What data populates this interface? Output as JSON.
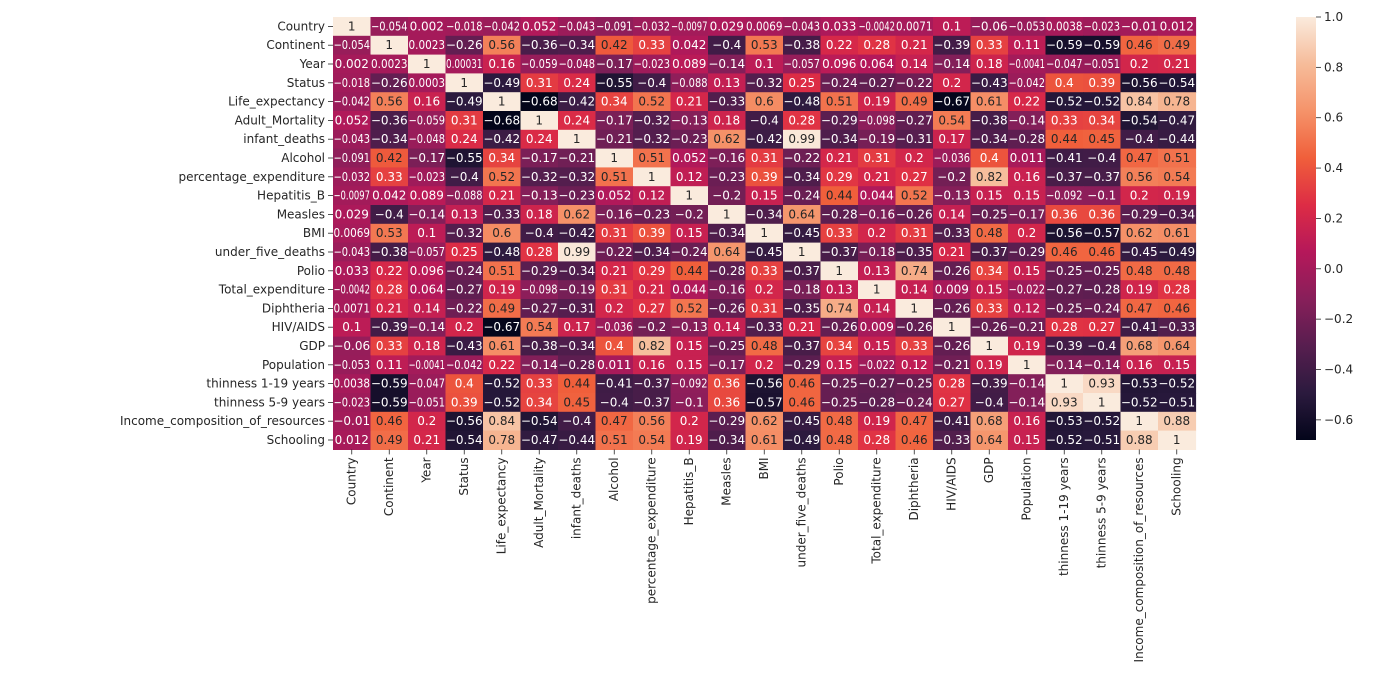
{
  "chart_data": {
    "type": "heatmap",
    "title": "",
    "xlabel": "",
    "ylabel": "",
    "variables": [
      "Country",
      "Continent",
      "Year",
      "Status",
      "Life_expectancy",
      "Adult_Mortality",
      "infant_deaths",
      "Alcohol",
      "percentage_expenditure",
      "Hepatitis_B",
      "Measles ",
      "BMI",
      "under_five_deaths",
      "Polio",
      "Total_expenditure",
      "Diphtheria",
      "HIV/AIDS",
      "GDP",
      "Population",
      "thinness  1-19 years",
      "thinness 5-9 years",
      "Income_composition_of_resources",
      "Schooling"
    ],
    "matrix": [
      [
        1,
        -0.054,
        0.002,
        -0.018,
        -0.042,
        0.052,
        -0.043,
        -0.091,
        -0.032,
        -0.0097,
        0.029,
        0.0069,
        -0.043,
        0.033,
        -0.0042,
        0.0071,
        0.1,
        -0.06,
        -0.053,
        0.0038,
        -0.023,
        -0.01,
        0.012
      ],
      [
        -0.054,
        1,
        0.0023,
        -0.26,
        0.56,
        -0.36,
        -0.34,
        0.42,
        0.33,
        0.042,
        -0.4,
        0.53,
        -0.38,
        0.22,
        0.28,
        0.21,
        -0.39,
        0.33,
        0.11,
        -0.59,
        -0.59,
        0.46,
        0.49
      ],
      [
        0.002,
        0.0023,
        1,
        0.00031,
        0.16,
        -0.059,
        -0.048,
        -0.17,
        -0.023,
        0.089,
        -0.14,
        0.1,
        -0.057,
        0.096,
        0.064,
        0.14,
        -0.14,
        0.18,
        -0.0041,
        -0.047,
        -0.051,
        0.2,
        0.21
      ],
      [
        -0.018,
        -0.26,
        0.0003,
        1,
        -0.49,
        0.31,
        0.24,
        -0.55,
        -0.4,
        -0.088,
        0.13,
        -0.32,
        0.25,
        -0.24,
        -0.27,
        -0.22,
        0.2,
        -0.43,
        -0.042,
        0.4,
        0.39,
        -0.56,
        -0.54
      ],
      [
        -0.042,
        0.56,
        0.16,
        -0.49,
        1,
        -0.68,
        -0.42,
        0.34,
        0.52,
        0.21,
        -0.33,
        0.6,
        -0.48,
        0.51,
        0.19,
        0.49,
        -0.67,
        0.61,
        0.22,
        -0.52,
        -0.52,
        0.84,
        0.78
      ],
      [
        0.052,
        -0.36,
        -0.059,
        0.31,
        -0.68,
        1,
        0.24,
        -0.17,
        -0.32,
        -0.13,
        0.18,
        -0.4,
        0.28,
        -0.29,
        -0.098,
        -0.27,
        0.54,
        -0.38,
        -0.14,
        0.33,
        0.34,
        -0.54,
        -0.47
      ],
      [
        -0.043,
        -0.34,
        -0.048,
        0.24,
        -0.42,
        0.24,
        1,
        -0.21,
        -0.32,
        -0.23,
        0.62,
        -0.42,
        0.99,
        -0.34,
        -0.19,
        -0.31,
        0.17,
        -0.34,
        -0.28,
        0.44,
        0.45,
        -0.4,
        -0.44
      ],
      [
        -0.091,
        0.42,
        -0.17,
        -0.55,
        0.34,
        -0.17,
        -0.21,
        1,
        0.51,
        0.052,
        -0.16,
        0.31,
        -0.22,
        0.21,
        0.31,
        0.2,
        -0.036,
        0.4,
        0.011,
        -0.41,
        -0.4,
        0.47,
        0.51
      ],
      [
        -0.032,
        0.33,
        -0.023,
        -0.4,
        0.52,
        -0.32,
        -0.32,
        0.51,
        1,
        0.12,
        -0.23,
        0.39,
        -0.34,
        0.29,
        0.21,
        0.27,
        -0.2,
        0.82,
        0.16,
        -0.37,
        -0.37,
        0.56,
        0.54
      ],
      [
        -0.0097,
        0.042,
        0.089,
        -0.088,
        0.21,
        -0.13,
        -0.23,
        0.052,
        0.12,
        1,
        -0.2,
        0.15,
        -0.24,
        0.44,
        0.044,
        0.52,
        -0.13,
        0.15,
        0.15,
        -0.092,
        -0.1,
        0.2,
        0.19
      ],
      [
        0.029,
        -0.4,
        -0.14,
        0.13,
        -0.33,
        0.18,
        0.62,
        -0.16,
        -0.23,
        -0.2,
        1,
        -0.34,
        0.64,
        -0.28,
        -0.16,
        -0.26,
        0.14,
        -0.25,
        -0.17,
        0.36,
        0.36,
        -0.29,
        -0.34
      ],
      [
        0.0069,
        0.53,
        0.1,
        -0.32,
        0.6,
        -0.4,
        -0.42,
        0.31,
        0.39,
        0.15,
        -0.34,
        1,
        -0.45,
        0.33,
        0.2,
        0.31,
        -0.33,
        0.48,
        0.2,
        -0.56,
        -0.57,
        0.62,
        0.61
      ],
      [
        -0.043,
        -0.38,
        -0.057,
        0.25,
        -0.48,
        0.28,
        0.99,
        -0.22,
        -0.34,
        -0.24,
        0.64,
        -0.45,
        1,
        -0.37,
        -0.18,
        -0.35,
        0.21,
        -0.37,
        -0.29,
        0.46,
        0.46,
        -0.45,
        -0.49
      ],
      [
        0.033,
        0.22,
        0.096,
        -0.24,
        0.51,
        -0.29,
        -0.34,
        0.21,
        0.29,
        0.44,
        -0.28,
        0.33,
        -0.37,
        1,
        0.13,
        0.74,
        -0.26,
        0.34,
        0.15,
        -0.25,
        -0.25,
        0.48,
        0.48
      ],
      [
        -0.0042,
        0.28,
        0.064,
        -0.27,
        0.19,
        -0.098,
        -0.19,
        0.31,
        0.21,
        0.044,
        -0.16,
        0.2,
        -0.18,
        0.13,
        1,
        0.14,
        0.009,
        0.15,
        -0.022,
        -0.27,
        -0.28,
        0.19,
        0.28
      ],
      [
        0.0071,
        0.21,
        0.14,
        -0.22,
        0.49,
        -0.27,
        -0.31,
        0.2,
        0.27,
        0.52,
        -0.26,
        0.31,
        -0.35,
        0.74,
        0.14,
        1,
        -0.26,
        0.33,
        0.12,
        -0.25,
        -0.24,
        0.47,
        0.46
      ],
      [
        0.1,
        -0.39,
        -0.14,
        0.2,
        -0.67,
        0.54,
        0.17,
        -0.036,
        -0.2,
        -0.13,
        0.14,
        -0.33,
        0.21,
        -0.26,
        0.009,
        -0.26,
        1,
        -0.26,
        -0.21,
        0.28,
        0.27,
        -0.41,
        -0.33
      ],
      [
        -0.06,
        0.33,
        0.18,
        -0.43,
        0.61,
        -0.38,
        -0.34,
        0.4,
        0.82,
        0.15,
        -0.25,
        0.48,
        -0.37,
        0.34,
        0.15,
        0.33,
        -0.26,
        1,
        0.19,
        -0.39,
        -0.4,
        0.68,
        0.64
      ],
      [
        -0.053,
        0.11,
        -0.0041,
        -0.042,
        0.22,
        -0.14,
        -0.28,
        0.011,
        0.16,
        0.15,
        -0.17,
        0.2,
        -0.29,
        0.15,
        -0.022,
        0.12,
        -0.21,
        0.19,
        1,
        -0.14,
        -0.14,
        0.16,
        0.15
      ],
      [
        0.0038,
        -0.59,
        -0.047,
        0.4,
        -0.52,
        0.33,
        0.44,
        -0.41,
        -0.37,
        -0.092,
        0.36,
        -0.56,
        0.46,
        -0.25,
        -0.27,
        -0.25,
        0.28,
        -0.39,
        -0.14,
        1,
        0.93,
        -0.53,
        -0.52
      ],
      [
        -0.023,
        -0.59,
        -0.051,
        0.39,
        -0.52,
        0.34,
        0.45,
        -0.4,
        -0.37,
        -0.1,
        0.36,
        -0.57,
        0.46,
        -0.25,
        -0.28,
        -0.24,
        0.27,
        -0.4,
        -0.14,
        0.93,
        1,
        -0.52,
        -0.51
      ],
      [
        -0.01,
        0.46,
        0.2,
        -0.56,
        0.84,
        -0.54,
        -0.4,
        0.47,
        0.56,
        0.2,
        -0.29,
        0.62,
        -0.45,
        0.48,
        0.19,
        0.47,
        -0.41,
        0.68,
        0.16,
        -0.53,
        -0.52,
        1,
        0.88
      ],
      [
        0.012,
        0.49,
        0.21,
        -0.54,
        0.78,
        -0.47,
        -0.44,
        0.51,
        0.54,
        0.19,
        -0.34,
        0.61,
        -0.49,
        0.48,
        0.28,
        0.46,
        -0.33,
        0.64,
        0.15,
        -0.52,
        -0.51,
        0.88,
        1
      ]
    ],
    "colorbar": {
      "range": [
        -0.68,
        1.0
      ],
      "ticks": [
        1.0,
        0.8,
        0.6,
        0.4,
        0.2,
        0.0,
        -0.2,
        -0.4,
        -0.6
      ],
      "tick_labels": [
        "1.0",
        "0.8",
        "0.6",
        "0.4",
        "0.2",
        "0.0",
        "−0.2",
        "−0.4",
        "−0.6"
      ],
      "colormap": "rocket",
      "stops": [
        "#03051a",
        "#2b1a3e",
        "#571e4f",
        "#881f5a",
        "#b5185a",
        "#dd2c45",
        "#f05f3b",
        "#f5936a",
        "#f6bc9a",
        "#faebdd"
      ]
    },
    "grid": false,
    "legend": "colorbar-right"
  }
}
